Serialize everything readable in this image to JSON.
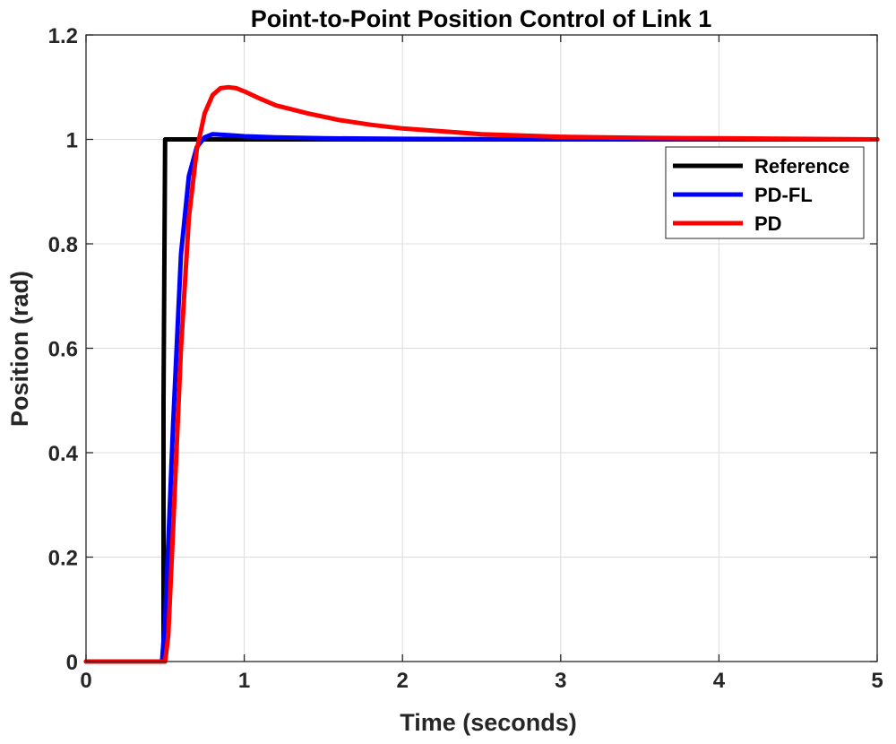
{
  "chart_data": {
    "type": "line",
    "title": "Point-to-Point Position Control of Link 1",
    "xlabel": "Time (seconds)",
    "ylabel": "Position (rad)",
    "xlim": [
      0,
      5
    ],
    "ylim": [
      0,
      1.2
    ],
    "xticks": [
      0,
      1,
      2,
      3,
      4,
      5
    ],
    "yticks": [
      0,
      0.2,
      0.4,
      0.6,
      0.8,
      1,
      1.2
    ],
    "xtick_labels": [
      "0",
      "1",
      "2",
      "3",
      "4",
      "5"
    ],
    "ytick_labels": [
      "0",
      "0.2",
      "0.4",
      "0.6",
      "0.8",
      "1",
      "1.2"
    ],
    "grid": true,
    "legend_position": "top-right",
    "series": [
      {
        "name": "Reference",
        "color": "#000000",
        "x": [
          0,
          0.49,
          0.49,
          0.5,
          5
        ],
        "y": [
          0,
          0,
          0.5,
          1,
          1
        ]
      },
      {
        "name": "PD-FL",
        "color": "#0000ff",
        "x": [
          0,
          0.48,
          0.5,
          0.55,
          0.6,
          0.65,
          0.7,
          0.75,
          0.8,
          0.9,
          1.0,
          1.2,
          1.5,
          2.0,
          3.0,
          5.0
        ],
        "y": [
          0,
          0,
          0.08,
          0.45,
          0.78,
          0.93,
          0.985,
          1.004,
          1.01,
          1.008,
          1.006,
          1.004,
          1.002,
          1.001,
          1.0,
          1.0
        ]
      },
      {
        "name": "PD",
        "color": "#ff0000",
        "x": [
          0,
          0.5,
          0.52,
          0.55,
          0.6,
          0.65,
          0.7,
          0.75,
          0.8,
          0.85,
          0.9,
          0.95,
          1.0,
          1.1,
          1.2,
          1.4,
          1.6,
          1.8,
          2.0,
          2.5,
          3.0,
          3.5,
          4.0,
          4.5,
          5.0
        ],
        "y": [
          0,
          0,
          0.05,
          0.25,
          0.6,
          0.85,
          0.98,
          1.05,
          1.085,
          1.098,
          1.1,
          1.098,
          1.092,
          1.078,
          1.065,
          1.05,
          1.037,
          1.028,
          1.021,
          1.01,
          1.005,
          1.003,
          1.002,
          1.001,
          1.0
        ]
      }
    ]
  }
}
